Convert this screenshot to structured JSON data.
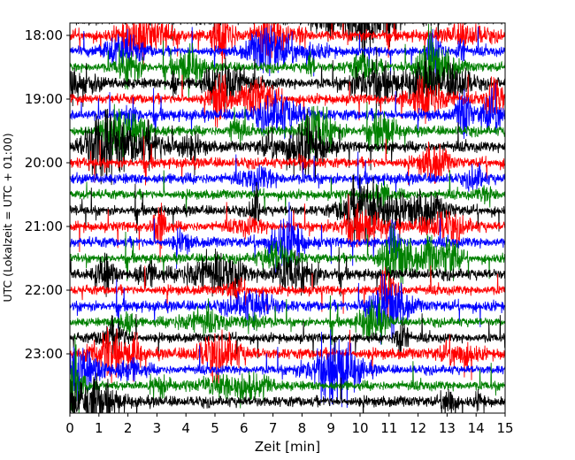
{
  "chart_data": {
    "type": "line",
    "subtype": "helicorder",
    "title": "",
    "xlabel": "Zeit  [min]",
    "ylabel": "UTC (Lokalzeit = UTC + 01:00)",
    "xlim": [
      0,
      15
    ],
    "xticks": [
      "0",
      "1",
      "2",
      "3",
      "4",
      "5",
      "6",
      "7",
      "8",
      "9",
      "10",
      "11",
      "12",
      "13",
      "14",
      "15"
    ],
    "yticks": [
      "18:00",
      "19:00",
      "20:00",
      "21:00",
      "22:00",
      "23:00"
    ],
    "trace_interval_min": 15,
    "start_time": "17:45",
    "end_time": "24:00",
    "trace_count": 25,
    "colors": [
      "#000000",
      "#ff0000",
      "#0000ff",
      "#008000"
    ],
    "grid": false,
    "legend": "none"
  }
}
